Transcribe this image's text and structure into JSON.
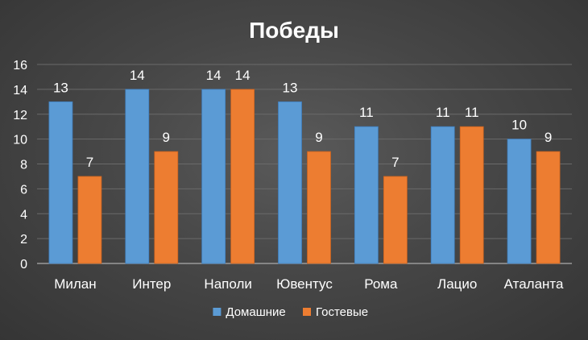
{
  "chart_data": {
    "type": "bar",
    "title": "Победы",
    "xlabel": "",
    "ylabel": "",
    "categories": [
      "Милан",
      "Интер",
      "Наполи",
      "Ювентус",
      "Рома",
      "Лацио",
      "Аталанта"
    ],
    "series": [
      {
        "name": "Домашние",
        "color": "#5b9bd5",
        "values": [
          13,
          14,
          14,
          13,
          11,
          11,
          10
        ]
      },
      {
        "name": "Гостевые",
        "color": "#ed7d31",
        "values": [
          7,
          9,
          14,
          9,
          7,
          11,
          9
        ]
      }
    ],
    "ylim": [
      0,
      16
    ],
    "yticks": [
      0,
      2,
      4,
      6,
      8,
      10,
      12,
      14,
      16
    ],
    "grid": true,
    "data_labels": true,
    "legend_position": "bottom"
  }
}
